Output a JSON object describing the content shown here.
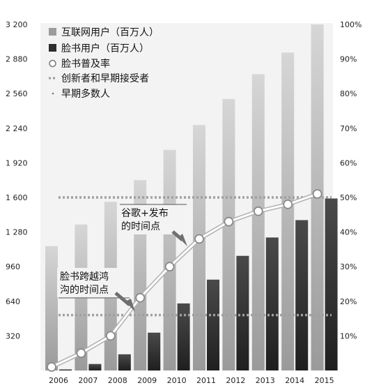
{
  "chart_data": {
    "type": "bar",
    "categories": [
      "2006",
      "2007",
      "2008",
      "2009",
      "2010",
      "2011",
      "2012",
      "2013",
      "2014",
      "2015"
    ],
    "series": [
      {
        "name": "互联网用户（百万人）",
        "type": "bar",
        "axis": "left",
        "color": "#a8a8a8",
        "values": [
          1150,
          1350,
          1560,
          1760,
          2040,
          2270,
          2510,
          2740,
          2940,
          3200
        ]
      },
      {
        "name": "脸书用户（百万人）",
        "type": "bar",
        "axis": "left",
        "color": "#3a3a3a",
        "values": [
          10,
          60,
          150,
          350,
          620,
          840,
          1060,
          1230,
          1390,
          1590
        ]
      },
      {
        "name": "脸书普及率",
        "type": "line",
        "axis": "right",
        "color": "#ffffff",
        "values": [
          1,
          5,
          10,
          21,
          30,
          38,
          43,
          46,
          48,
          51
        ]
      }
    ],
    "reference_lines": [
      {
        "name": "创新者和早期接受者",
        "axis": "right",
        "value": 50,
        "style": "dotted"
      },
      {
        "name": "早期多数人",
        "axis": "right",
        "value": 16,
        "style": "dotted"
      }
    ],
    "annotations": [
      {
        "name": "annotation-crossing-chasm",
        "lines": [
          "脸书跨越鸿",
          "沟的时间点"
        ]
      },
      {
        "name": "annotation-google-launch",
        "lines": [
          "谷歌+发布",
          "的时间点"
        ]
      }
    ],
    "ylim_left": [
      0,
      3200
    ],
    "yticks_left": [
      "320",
      "640",
      "960",
      "1 280",
      "1 600",
      "1 920",
      "2 240",
      "2 560",
      "2 880",
      "3 200"
    ],
    "ylim_right": [
      0,
      100
    ],
    "yticks_right": [
      "10%",
      "20%",
      "30%",
      "40%",
      "50%",
      "60%",
      "70%",
      "80%",
      "90%",
      "100%"
    ],
    "xlabel": "",
    "ylabel": "",
    "title": "",
    "legend_position": "top-left",
    "grid": false
  }
}
